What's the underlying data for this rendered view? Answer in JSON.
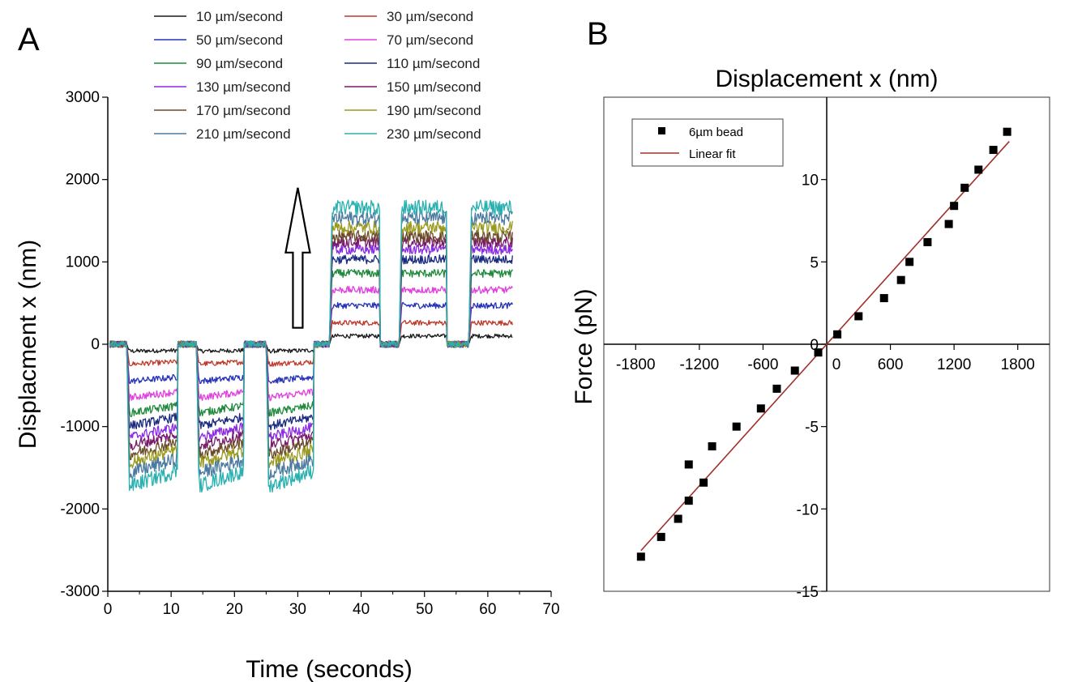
{
  "chart_data": [
    {
      "panel": "A",
      "type": "line",
      "xlabel": "Time (seconds)",
      "ylabel": "Displacment x (nm)",
      "xlim": [
        0,
        70
      ],
      "ylim": [
        -3000,
        3000
      ],
      "xticks": [
        0,
        10,
        20,
        30,
        40,
        50,
        60,
        70
      ],
      "yticks": [
        -3000,
        -2000,
        -1000,
        0,
        1000,
        2000,
        3000
      ],
      "legend_position": "top",
      "phases": {
        "negative": [
          [
            3,
            11
          ],
          [
            14,
            21.5
          ],
          [
            25,
            32.5
          ]
        ],
        "positive": [
          [
            35,
            43
          ],
          [
            46,
            53.5
          ],
          [
            57,
            64
          ]
        ],
        "rest": [
          [
            0,
            3
          ],
          [
            11,
            14
          ],
          [
            21.5,
            25
          ],
          [
            32.5,
            35
          ],
          [
            43,
            46
          ],
          [
            53.5,
            57
          ]
        ]
      },
      "annotation": "upward arrow at t = 30 s",
      "series": [
        {
          "name": "10 µm/second",
          "color": "#1a1a1a",
          "negative_level": -80,
          "positive_level": 100
        },
        {
          "name": "30 µm/second",
          "color": "#c0392b",
          "negative_level": -230,
          "positive_level": 260
        },
        {
          "name": "50 µm/second",
          "color": "#2632b8",
          "negative_level": -430,
          "positive_level": 470
        },
        {
          "name": "70 µm/second",
          "color": "#e040e0",
          "negative_level": -620,
          "positive_level": 660
        },
        {
          "name": "90 µm/second",
          "color": "#1f8a3c",
          "negative_level": -800,
          "positive_level": 860
        },
        {
          "name": "110 µm/second",
          "color": "#1a2a80",
          "negative_level": -950,
          "positive_level": 1030
        },
        {
          "name": "130 µm/second",
          "color": "#8a2be2",
          "negative_level": -1080,
          "positive_level": 1150
        },
        {
          "name": "150 µm/second",
          "color": "#7a1a6a",
          "negative_level": -1180,
          "positive_level": 1240
        },
        {
          "name": "170 µm/second",
          "color": "#6b4a2a",
          "negative_level": -1280,
          "positive_level": 1310
        },
        {
          "name": "190 µm/second",
          "color": "#9a9a20",
          "negative_level": -1380,
          "positive_level": 1420
        },
        {
          "name": "210 µm/second",
          "color": "#4a7aa0",
          "negative_level": -1500,
          "positive_level": 1530
        },
        {
          "name": "230 µm/second",
          "color": "#2ab0b0",
          "negative_level": -1650,
          "positive_level": 1660
        }
      ]
    },
    {
      "panel": "B",
      "type": "scatter",
      "title": "Displacement x (nm)",
      "xlabel": "",
      "ylabel": "Force (pN)",
      "xlim": [
        -2100,
        2100
      ],
      "ylim": [
        -15,
        15
      ],
      "xticks": [
        -1800,
        -1200,
        -600,
        0,
        600,
        1200,
        1800
      ],
      "yticks": [
        -15,
        -10,
        -5,
        0,
        5,
        10
      ],
      "legend_position": "top-left",
      "series": [
        {
          "name": "6µm bead",
          "color": "#000000",
          "x": [
            -1750,
            -1560,
            -1400,
            -1300,
            -1300,
            -1160,
            -1080,
            -850,
            -620,
            -470,
            -300,
            -80,
            100,
            300,
            540,
            700,
            780,
            950,
            1150,
            1200,
            1300,
            1430,
            1570,
            1700
          ],
          "y": [
            -12.9,
            -11.7,
            -10.6,
            -9.5,
            -7.3,
            -8.4,
            -6.2,
            -5.0,
            -3.9,
            -2.7,
            -1.6,
            -0.5,
            0.6,
            1.7,
            2.8,
            3.9,
            5.0,
            6.2,
            7.3,
            8.4,
            9.5,
            10.6,
            11.8,
            12.9
          ]
        },
        {
          "name": "Linear fit",
          "color": "#a0302a",
          "kind": "line",
          "slope": 0.00716,
          "intercept": 0
        }
      ]
    }
  ]
}
